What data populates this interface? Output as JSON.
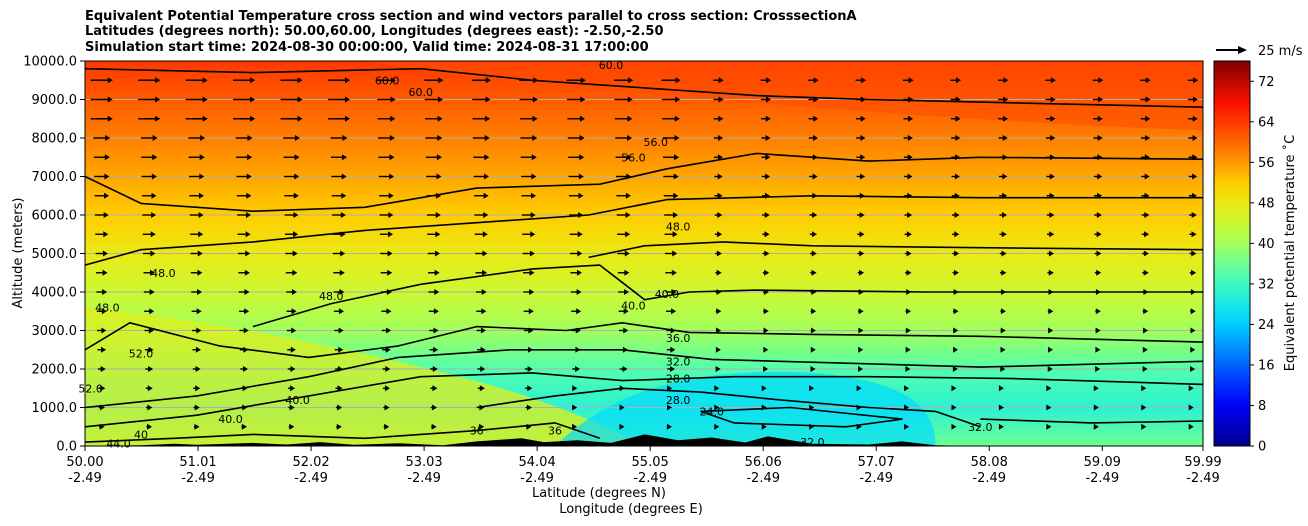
{
  "title_lines": [
    "Equivalent Potential Temperature cross section and wind vectors parallel to cross section: CrosssectionA",
    "Latitudes (degrees north): 50.00,60.00, Longitudes (degrees east): -2.50,-2.50",
    "Simulation start time: 2024-08-30 00:00:00, Valid time: 2024-08-31 17:00:00"
  ],
  "chart_data": {
    "type": "contourf",
    "ylabel": "Altitude (meters)",
    "xlabel_lat": "Latitude (degrees N)",
    "xlabel_lon": "Longitude (degrees E)",
    "ylim": [
      0,
      10000
    ],
    "xlim": [
      50.0,
      59.99
    ],
    "y_ticks": [
      "0.0",
      "1000.0",
      "2000.0",
      "3000.0",
      "4000.0",
      "5000.0",
      "6000.0",
      "7000.0",
      "8000.0",
      "9000.0",
      "10000.0"
    ],
    "x_ticks": [
      {
        "lat": "50.00",
        "lon": "-2.49"
      },
      {
        "lat": "51.01",
        "lon": "-2.49"
      },
      {
        "lat": "52.02",
        "lon": "-2.49"
      },
      {
        "lat": "53.03",
        "lon": "-2.49"
      },
      {
        "lat": "54.04",
        "lon": "-2.49"
      },
      {
        "lat": "55.05",
        "lon": "-2.49"
      },
      {
        "lat": "56.06",
        "lon": "-2.49"
      },
      {
        "lat": "57.07",
        "lon": "-2.49"
      },
      {
        "lat": "58.08",
        "lon": "-2.49"
      },
      {
        "lat": "59.09",
        "lon": "-2.49"
      },
      {
        "lat": "59.99",
        "lon": "-2.49"
      }
    ],
    "colorbar": {
      "label": "Equivalent potential temperature ˚C",
      "range": [
        0,
        76
      ],
      "ticks": [
        "0",
        "8",
        "16",
        "24",
        "32",
        "40",
        "48",
        "56",
        "64",
        "72"
      ]
    },
    "wind_key": {
      "label": "25 m/s",
      "value": 25
    },
    "theta_e_profile": {
      "altitude_m": [
        0,
        1000,
        2000,
        3000,
        4000,
        5000,
        6000,
        7000,
        8000,
        9000,
        10000
      ],
      "approx_theta_e_C": [
        36,
        30,
        34,
        40,
        44,
        48,
        52,
        55,
        58,
        61,
        64
      ]
    },
    "contour_labels": [
      {
        "text": "60.0",
        "lat": 52.7,
        "alt": 9500
      },
      {
        "text": "60.0",
        "lat": 53.0,
        "alt": 9200
      },
      {
        "text": "60.0",
        "lat": 54.7,
        "alt": 9900
      },
      {
        "text": "56.0",
        "lat": 55.1,
        "alt": 7900
      },
      {
        "text": "56.0",
        "lat": 54.9,
        "alt": 7500
      },
      {
        "text": "48.0",
        "lat": 55.3,
        "alt": 5700
      },
      {
        "text": "48.0",
        "lat": 50.7,
        "alt": 4500
      },
      {
        "text": "48.0",
        "lat": 50.2,
        "alt": 3600
      },
      {
        "text": "48.0",
        "lat": 52.2,
        "alt": 3900
      },
      {
        "text": "40.0",
        "lat": 55.2,
        "alt": 3950
      },
      {
        "text": "40.0",
        "lat": 54.9,
        "alt": 3650
      },
      {
        "text": "52.0",
        "lat": 50.5,
        "alt": 2400
      },
      {
        "text": "52.0",
        "lat": 50.05,
        "alt": 1500
      },
      {
        "text": "36.0",
        "lat": 55.3,
        "alt": 2800
      },
      {
        "text": "32.0",
        "lat": 55.3,
        "alt": 2200
      },
      {
        "text": "28.0",
        "lat": 55.3,
        "alt": 1750
      },
      {
        "text": "28.0",
        "lat": 55.3,
        "alt": 1200
      },
      {
        "text": "24.0",
        "lat": 55.6,
        "alt": 900
      },
      {
        "text": "40.0",
        "lat": 51.9,
        "alt": 1200
      },
      {
        "text": "40.0",
        "lat": 51.3,
        "alt": 700
      },
      {
        "text": "40",
        "lat": 50.5,
        "alt": 300
      },
      {
        "text": "44.0",
        "lat": 50.3,
        "alt": 60
      },
      {
        "text": "36",
        "lat": 53.5,
        "alt": 400
      },
      {
        "text": "36",
        "lat": 54.2,
        "alt": 400
      },
      {
        "text": "32.0",
        "lat": 56.5,
        "alt": 100
      },
      {
        "text": "32.0",
        "lat": 58.0,
        "alt": 500
      }
    ]
  },
  "colors": {
    "jet": [
      "#00008f",
      "#0000ff",
      "#006fff",
      "#00dfff",
      "#4fffaf",
      "#bfff3f",
      "#ffdf00",
      "#ff7000",
      "#ff1000",
      "#800000"
    ]
  }
}
